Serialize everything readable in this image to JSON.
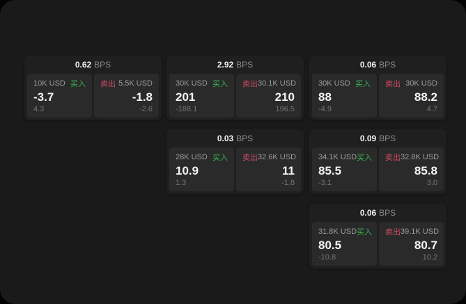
{
  "app": {
    "kind": "fx-quote-dashboard",
    "surface_color": "#1a1a1a",
    "card_color": "#1f1f1f",
    "panel_color": "#2a2a2a"
  },
  "colors": {
    "buy_green": "#3aaf4f",
    "sell_red": "#cf4a63",
    "value_white": "#f5f5f5",
    "label_gray": "#9c9c9c",
    "delta_gray": "#767676",
    "unit_gray": "#8b8b8b"
  },
  "cards": [
    {
      "bps": "0.62",
      "unit": "BPS",
      "buy": {
        "size": "10K USD",
        "side_label": "买入",
        "value": "-3.7",
        "delta": "4.3"
      },
      "sell": {
        "size": "5.5K USD",
        "side_label": "卖出",
        "value": "-1.8",
        "delta": "-2.6"
      }
    },
    {
      "bps": "2.92",
      "unit": "BPS",
      "buy": {
        "size": "30K USD",
        "side_label": "买入",
        "value": "201",
        "delta": "-188.1"
      },
      "sell": {
        "size": "30.1K USD",
        "side_label": "卖出",
        "value": "210",
        "delta": "196.5"
      }
    },
    {
      "bps": "0.06",
      "unit": "BPS",
      "buy": {
        "size": "30K USD",
        "side_label": "买入",
        "value": "88",
        "delta": "-4.9"
      },
      "sell": {
        "size": "30K USD",
        "side_label": "卖出",
        "value": "88.2",
        "delta": "4.7"
      }
    },
    {
      "bps": "0.03",
      "unit": "BPS",
      "buy": {
        "size": "28K USD",
        "side_label": "买入",
        "value": "10.9",
        "delta": "1.3"
      },
      "sell": {
        "size": "32.6K USD",
        "side_label": "卖出",
        "value": "11",
        "delta": "-1.8"
      }
    },
    {
      "bps": "0.09",
      "unit": "BPS",
      "buy": {
        "size": "34.1K USD",
        "side_label": "买入",
        "value": "85.5",
        "delta": "-3.1"
      },
      "sell": {
        "size": "32.8K USD",
        "side_label": "卖出",
        "value": "85.8",
        "delta": "3.0"
      }
    },
    {
      "bps": "0.06",
      "unit": "BPS",
      "buy": {
        "size": "31.8K USD",
        "side_label": "买入",
        "value": "80.5",
        "delta": "-10.8"
      },
      "sell": {
        "size": "39.1K USD",
        "side_label": "卖出",
        "value": "80.7",
        "delta": "10.2"
      }
    }
  ]
}
